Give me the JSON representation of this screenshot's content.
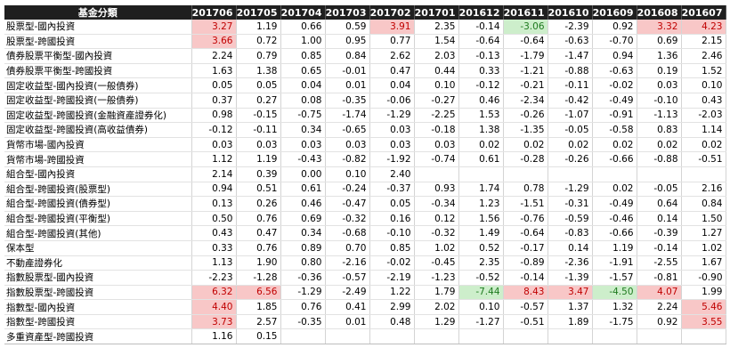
{
  "table": {
    "header_label": "基金分類",
    "columns": [
      "201706",
      "201705",
      "201704",
      "201703",
      "201702",
      "201701",
      "201612",
      "201611",
      "201610",
      "201609",
      "201608",
      "201607"
    ],
    "rows": [
      {
        "name": "股票型-國內投資",
        "values": [
          "3.27",
          "1.19",
          "0.66",
          "0.59",
          "3.91",
          "2.35",
          "-0.14",
          "-3.06",
          "-2.39",
          "0.92",
          "3.32",
          "4.23"
        ],
        "hl": [
          "pos",
          "",
          "",
          "",
          "pos",
          "",
          "",
          "neg",
          "",
          "",
          "pos",
          "pos"
        ]
      },
      {
        "name": "股票型-跨國投資",
        "values": [
          "3.66",
          "0.72",
          "1.00",
          "0.95",
          "0.77",
          "1.54",
          "-0.64",
          "-0.64",
          "-0.63",
          "-0.70",
          "0.69",
          "2.15"
        ],
        "hl": [
          "pos",
          "",
          "",
          "",
          "",
          "",
          "",
          "",
          "",
          "",
          "",
          ""
        ]
      },
      {
        "name": "債券股票平衡型-國內投資",
        "values": [
          "2.24",
          "0.79",
          "0.85",
          "0.84",
          "2.62",
          "2.03",
          "-0.13",
          "-1.79",
          "-1.47",
          "0.94",
          "1.36",
          "2.46"
        ],
        "hl": [
          "",
          "",
          "",
          "",
          "",
          "",
          "",
          "",
          "",
          "",
          "",
          ""
        ]
      },
      {
        "name": "債券股票平衡型-跨國投資",
        "values": [
          "1.63",
          "1.38",
          "0.65",
          "-0.01",
          "0.47",
          "0.44",
          "0.33",
          "-1.21",
          "-0.88",
          "-0.63",
          "0.19",
          "1.52"
        ],
        "hl": [
          "",
          "",
          "",
          "",
          "",
          "",
          "",
          "",
          "",
          "",
          "",
          ""
        ]
      },
      {
        "name": "固定收益型-國內投資(一般債券)",
        "values": [
          "0.05",
          "0.05",
          "0.04",
          "0.01",
          "0.04",
          "0.10",
          "-0.12",
          "-0.21",
          "-0.11",
          "-0.02",
          "0.03",
          "0.10"
        ],
        "hl": [
          "",
          "",
          "",
          "",
          "",
          "",
          "",
          "",
          "",
          "",
          "",
          ""
        ]
      },
      {
        "name": "固定收益型-跨國投資(一般債券)",
        "values": [
          "0.37",
          "0.27",
          "0.08",
          "-0.35",
          "-0.06",
          "-0.27",
          "0.46",
          "-2.34",
          "-0.42",
          "-0.49",
          "-0.10",
          "0.43"
        ],
        "hl": [
          "",
          "",
          "",
          "",
          "",
          "",
          "",
          "",
          "",
          "",
          "",
          ""
        ]
      },
      {
        "name": "固定收益型-跨國投資(金融資產證券化)",
        "values": [
          "0.98",
          "-0.15",
          "-0.75",
          "-1.74",
          "-1.29",
          "-2.25",
          "1.53",
          "-0.26",
          "-1.07",
          "-0.91",
          "-1.13",
          "-2.03"
        ],
        "hl": [
          "",
          "",
          "",
          "",
          "",
          "",
          "",
          "",
          "",
          "",
          "",
          ""
        ]
      },
      {
        "name": "固定收益型-跨國投資(高收益債券)",
        "values": [
          "-0.12",
          "-0.11",
          "0.34",
          "-0.65",
          "0.03",
          "-0.18",
          "1.38",
          "-1.35",
          "-0.05",
          "-0.58",
          "0.83",
          "1.14"
        ],
        "hl": [
          "",
          "",
          "",
          "",
          "",
          "",
          "",
          "",
          "",
          "",
          "",
          ""
        ]
      },
      {
        "name": "貨幣市場-國內投資",
        "values": [
          "0.03",
          "0.03",
          "0.03",
          "0.03",
          "0.03",
          "0.03",
          "0.02",
          "0.02",
          "0.02",
          "0.02",
          "0.02",
          "0.02"
        ],
        "hl": [
          "",
          "",
          "",
          "",
          "",
          "",
          "",
          "",
          "",
          "",
          "",
          ""
        ]
      },
      {
        "name": "貨幣市場-跨國投資",
        "values": [
          "1.12",
          "1.19",
          "-0.43",
          "-0.82",
          "-1.92",
          "-0.74",
          "0.61",
          "-0.28",
          "-0.26",
          "-0.66",
          "-0.88",
          "-0.51"
        ],
        "hl": [
          "",
          "",
          "",
          "",
          "",
          "",
          "",
          "",
          "",
          "",
          "",
          ""
        ]
      },
      {
        "name": "組合型-國內投資",
        "values": [
          "2.14",
          "0.39",
          "0.00",
          "0.10",
          "2.40",
          "",
          "",
          "",
          "",
          "",
          "",
          ""
        ],
        "hl": [
          "",
          "",
          "",
          "",
          "",
          "",
          "",
          "",
          "",
          "",
          "",
          ""
        ]
      },
      {
        "name": "組合型-跨國投資(股票型)",
        "values": [
          "0.94",
          "0.51",
          "0.61",
          "-0.24",
          "-0.37",
          "0.93",
          "1.74",
          "0.78",
          "-1.29",
          "0.02",
          "-0.05",
          "2.16"
        ],
        "hl": [
          "",
          "",
          "",
          "",
          "",
          "",
          "",
          "",
          "",
          "",
          "",
          ""
        ]
      },
      {
        "name": "組合型-跨國投資(債券型)",
        "values": [
          "0.13",
          "0.26",
          "0.46",
          "-0.47",
          "0.05",
          "-0.34",
          "1.23",
          "-1.51",
          "-0.31",
          "-0.49",
          "0.64",
          "0.84"
        ],
        "hl": [
          "",
          "",
          "",
          "",
          "",
          "",
          "",
          "",
          "",
          "",
          "",
          ""
        ]
      },
      {
        "name": "組合型-跨國投資(平衡型)",
        "values": [
          "0.50",
          "0.76",
          "0.69",
          "-0.32",
          "0.16",
          "0.12",
          "1.56",
          "-0.76",
          "-0.59",
          "-0.46",
          "0.14",
          "1.50"
        ],
        "hl": [
          "",
          "",
          "",
          "",
          "",
          "",
          "",
          "",
          "",
          "",
          "",
          ""
        ]
      },
      {
        "name": "組合型-跨國投資(其他)",
        "values": [
          "0.43",
          "0.47",
          "0.34",
          "-0.68",
          "-0.10",
          "-0.32",
          "1.49",
          "-0.64",
          "-0.83",
          "-0.66",
          "-0.39",
          "1.27"
        ],
        "hl": [
          "",
          "",
          "",
          "",
          "",
          "",
          "",
          "",
          "",
          "",
          "",
          ""
        ]
      },
      {
        "name": "保本型",
        "values": [
          "0.33",
          "0.76",
          "0.89",
          "0.70",
          "0.85",
          "1.02",
          "0.52",
          "-0.17",
          "0.14",
          "1.19",
          "-0.14",
          "1.02"
        ],
        "hl": [
          "",
          "",
          "",
          "",
          "",
          "",
          "",
          "",
          "",
          "",
          "",
          ""
        ]
      },
      {
        "name": "不動產證券化",
        "values": [
          "1.13",
          "1.90",
          "0.80",
          "-2.16",
          "-0.02",
          "-0.45",
          "2.35",
          "-0.89",
          "-2.36",
          "-1.91",
          "-2.55",
          "1.67"
        ],
        "hl": [
          "",
          "",
          "",
          "",
          "",
          "",
          "",
          "",
          "",
          "",
          "",
          ""
        ]
      },
      {
        "name": "指數股票型-國內投資",
        "values": [
          "-2.23",
          "-1.28",
          "-0.36",
          "-0.57",
          "-2.19",
          "-1.23",
          "-0.52",
          "-0.14",
          "-1.39",
          "-1.57",
          "-0.81",
          "-0.90"
        ],
        "hl": [
          "",
          "",
          "",
          "",
          "",
          "",
          "",
          "",
          "",
          "",
          "",
          ""
        ]
      },
      {
        "name": "指數股票型-跨國投資",
        "values": [
          "6.32",
          "6.56",
          "-1.29",
          "-2.49",
          "1.22",
          "1.79",
          "-7.44",
          "8.43",
          "3.47",
          "-4.50",
          "4.07",
          "1.99"
        ],
        "hl": [
          "pos",
          "pos",
          "",
          "",
          "",
          "",
          "neg",
          "pos",
          "pos",
          "neg",
          "pos",
          ""
        ]
      },
      {
        "name": "指數型-國內投資",
        "values": [
          "4.40",
          "1.85",
          "0.76",
          "0.41",
          "2.99",
          "2.02",
          "0.10",
          "-0.57",
          "1.37",
          "1.32",
          "2.24",
          "5.46"
        ],
        "hl": [
          "pos",
          "",
          "",
          "",
          "",
          "",
          "",
          "",
          "",
          "",
          "",
          "pos"
        ]
      },
      {
        "name": "指數型-跨國投資",
        "values": [
          "3.73",
          "2.57",
          "-0.35",
          "0.01",
          "0.48",
          "1.29",
          "-1.27",
          "-0.51",
          "1.89",
          "-1.75",
          "0.92",
          "3.55"
        ],
        "hl": [
          "pos",
          "",
          "",
          "",
          "",
          "",
          "",
          "",
          "",
          "",
          "",
          "pos"
        ]
      },
      {
        "name": "多重資產型-跨國投資",
        "values": [
          "1.16",
          "0.15",
          "",
          "",
          "",
          "",
          "",
          "",
          "",
          "",
          "",
          ""
        ],
        "hl": [
          "",
          "",
          "",
          "",
          "",
          "",
          "",
          "",
          "",
          "",
          "",
          ""
        ]
      }
    ]
  }
}
